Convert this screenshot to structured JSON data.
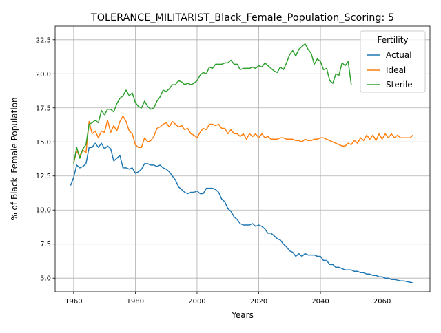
{
  "chart_data": {
    "type": "line",
    "title": "TOLERANCE_MILITARIST_Black_Female_Population_Scoring: 5",
    "xlabel": "Years",
    "ylabel": "% of Black_Female Population",
    "xlim": [
      1954,
      2075.5
    ],
    "ylim": [
      4.0,
      23.5
    ],
    "xticks": [
      1960,
      1980,
      2000,
      2020,
      2040,
      2060
    ],
    "yticks": [
      5.0,
      7.5,
      10.0,
      12.5,
      15.0,
      17.5,
      20.0,
      22.5
    ],
    "xtick_labels": [
      "1960",
      "1980",
      "2000",
      "2020",
      "2040",
      "2060"
    ],
    "ytick_labels": [
      "5.0",
      "7.5",
      "10.0",
      "12.5",
      "15.0",
      "17.5",
      "20.0",
      "22.5"
    ],
    "grid": true,
    "legend": {
      "title": "Fertility",
      "placement": "top-right"
    },
    "series": [
      {
        "name": "Actual",
        "color": "#1f77b4",
        "x": [
          1959,
          1960,
          1961,
          1962,
          1963,
          1964,
          1965,
          1966,
          1967,
          1968,
          1969,
          1970,
          1971,
          1972,
          1973,
          1974,
          1975,
          1976,
          1977,
          1978,
          1979,
          1980,
          1981,
          1982,
          1983,
          1984,
          1985,
          1986,
          1987,
          1988,
          1989,
          1990,
          1991,
          1992,
          1993,
          1994,
          1995,
          1996,
          1997,
          1998,
          1999,
          2000,
          2001,
          2002,
          2003,
          2004,
          2005,
          2006,
          2007,
          2008,
          2009,
          2010,
          2011,
          2012,
          2013,
          2014,
          2015,
          2016,
          2017,
          2018,
          2019,
          2020,
          2021,
          2022,
          2023,
          2024,
          2025,
          2026,
          2027,
          2028,
          2029,
          2030,
          2031,
          2032,
          2033,
          2034,
          2035,
          2036,
          2037,
          2038,
          2039,
          2040,
          2041,
          2042,
          2043,
          2044,
          2045,
          2046,
          2047,
          2048,
          2049,
          2050,
          2051,
          2052,
          2053,
          2054,
          2055,
          2056,
          2057,
          2058,
          2059,
          2060,
          2061,
          2062,
          2063,
          2064,
          2065,
          2066,
          2067,
          2068,
          2069,
          2070
        ],
        "values": [
          11.8,
          12.4,
          13.3,
          13.1,
          13.2,
          13.4,
          14.6,
          14.6,
          14.9,
          14.6,
          14.9,
          14.5,
          14.7,
          14.5,
          13.6,
          13.8,
          14.0,
          13.1,
          13.1,
          13.0,
          13.1,
          12.7,
          12.8,
          13.0,
          13.4,
          13.4,
          13.3,
          13.3,
          13.2,
          13.3,
          13.1,
          13.0,
          12.8,
          12.5,
          12.2,
          11.7,
          11.5,
          11.3,
          11.2,
          11.3,
          11.3,
          11.4,
          11.2,
          11.2,
          11.6,
          11.6,
          11.6,
          11.5,
          11.3,
          10.8,
          10.6,
          10.1,
          9.9,
          9.5,
          9.3,
          9.0,
          8.9,
          8.9,
          8.9,
          9.0,
          8.8,
          8.9,
          8.8,
          8.6,
          8.3,
          8.3,
          8.1,
          7.9,
          7.8,
          7.5,
          7.3,
          7.0,
          6.9,
          6.6,
          6.8,
          6.6,
          6.8,
          6.7,
          6.7,
          6.7,
          6.6,
          6.6,
          6.3,
          6.3,
          6.0,
          6.0,
          5.8,
          5.8,
          5.7,
          5.6,
          5.6,
          5.6,
          5.5,
          5.5,
          5.4,
          5.4,
          5.3,
          5.3,
          5.2,
          5.2,
          5.1,
          5.1,
          5.0,
          5.0,
          4.9,
          4.9,
          4.85,
          4.8,
          4.8,
          4.75,
          4.7,
          4.65
        ],
        "points": ""
      },
      {
        "name": "Ideal",
        "color": "#ff7f0e",
        "x": [
          1960,
          1961,
          1962,
          1963,
          1964,
          1965,
          1966,
          1967,
          1968,
          1969,
          1970,
          1971,
          1972,
          1973,
          1974,
          1975,
          1976,
          1977,
          1978,
          1979,
          1980,
          1981,
          1982,
          1983,
          1984,
          1985,
          1986,
          1987,
          1988,
          1989,
          1990,
          1991,
          1992,
          1993,
          1994,
          1995,
          1996,
          1997,
          1998,
          1999,
          2000,
          2001,
          2002,
          2003,
          2004,
          2005,
          2006,
          2007,
          2008,
          2009,
          2010,
          2011,
          2012,
          2013,
          2014,
          2015,
          2016,
          2017,
          2018,
          2019,
          2020,
          2021,
          2022,
          2023,
          2024,
          2025,
          2026,
          2027,
          2028,
          2029,
          2030,
          2031,
          2032,
          2033,
          2034,
          2035,
          2036,
          2037,
          2038,
          2039,
          2040,
          2041,
          2042,
          2043,
          2044,
          2045,
          2046,
          2047,
          2048,
          2049,
          2050,
          2051,
          2052,
          2053,
          2054,
          2055,
          2056,
          2057,
          2058,
          2059,
          2060,
          2061,
          2062,
          2063,
          2064,
          2065,
          2066,
          2067,
          2068,
          2069,
          2070
        ],
        "values": [
          13.5,
          14.3,
          14.0,
          14.4,
          14.2,
          16.5,
          15.6,
          15.8,
          15.3,
          15.8,
          15.7,
          16.6,
          15.7,
          16.2,
          15.8,
          16.5,
          16.9,
          16.5,
          15.8,
          15.6,
          14.8,
          14.6,
          14.6,
          15.3,
          15.0,
          15.1,
          15.4,
          16.0,
          16.1,
          16.3,
          16.4,
          16.1,
          16.5,
          16.3,
          16.1,
          16.2,
          15.9,
          16.0,
          15.6,
          15.5,
          15.3,
          15.7,
          16.0,
          15.9,
          16.3,
          16.3,
          16.2,
          16.3,
          16.0,
          16.0,
          15.6,
          15.9,
          15.6,
          15.6,
          15.4,
          15.6,
          15.2,
          15.6,
          15.4,
          15.6,
          15.3,
          15.6,
          15.3,
          15.4,
          15.2,
          15.2,
          15.2,
          15.3,
          15.3,
          15.2,
          15.2,
          15.2,
          15.1,
          15.1,
          15.0,
          15.2,
          15.1,
          15.1,
          15.2,
          15.2,
          15.3,
          15.3,
          15.2,
          15.1,
          15.0,
          14.9,
          14.8,
          14.7,
          14.7,
          14.9,
          14.8,
          15.1,
          14.9,
          15.3,
          15.1,
          15.5,
          15.2,
          15.5,
          15.1,
          15.6,
          15.2,
          15.6,
          15.3,
          15.6,
          15.3,
          15.5,
          15.3,
          15.3,
          15.3,
          15.3,
          15.5
        ],
        "points": ""
      },
      {
        "name": "Sterile",
        "color": "#2ca02c",
        "x": [
          1960,
          1961,
          1962,
          1963,
          1964,
          1965,
          1966,
          1967,
          1968,
          1969,
          1970,
          1971,
          1972,
          1973,
          1974,
          1975,
          1976,
          1977,
          1978,
          1979,
          1980,
          1981,
          1982,
          1983,
          1984,
          1985,
          1986,
          1987,
          1988,
          1989,
          1990,
          1991,
          1992,
          1993,
          1994,
          1995,
          1996,
          1997,
          1998,
          1999,
          2000,
          2001,
          2002,
          2003,
          2004,
          2005,
          2006,
          2007,
          2008,
          2009,
          2010,
          2011,
          2012,
          2013,
          2014,
          2015,
          2016,
          2017,
          2018,
          2019,
          2020,
          2021,
          2022,
          2023,
          2024,
          2025,
          2026,
          2027,
          2028,
          2029,
          2030,
          2031,
          2032,
          2033,
          2034,
          2035,
          2036,
          2037,
          2038,
          2039,
          2040,
          2041,
          2042,
          2043,
          2044,
          2045,
          2046,
          2047,
          2048,
          2049,
          2050
        ],
        "values": [
          13.4,
          14.6,
          13.8,
          14.5,
          14.8,
          16.3,
          16.4,
          16.6,
          16.4,
          17.3,
          17.0,
          17.4,
          17.4,
          17.2,
          17.8,
          18.2,
          18.4,
          18.8,
          18.4,
          18.6,
          17.9,
          17.6,
          17.5,
          18.0,
          17.6,
          17.4,
          17.5,
          18.0,
          18.3,
          18.8,
          18.7,
          18.9,
          19.2,
          19.2,
          19.5,
          19.4,
          19.2,
          19.3,
          19.2,
          19.3,
          19.5,
          19.9,
          20.1,
          20.0,
          20.5,
          20.4,
          20.7,
          20.7,
          20.7,
          20.8,
          20.8,
          21.0,
          20.7,
          20.7,
          20.3,
          20.4,
          20.4,
          20.4,
          20.5,
          20.4,
          20.6,
          20.5,
          20.8,
          20.6,
          20.4,
          20.2,
          20.1,
          20.5,
          20.3,
          20.8,
          21.4,
          21.7,
          21.3,
          21.8,
          22.0,
          22.2,
          21.8,
          21.5,
          20.7,
          21.1,
          20.9,
          20.3,
          20.4,
          19.5,
          19.3,
          20.0,
          19.9,
          20.8,
          20.6,
          20.9,
          19.2
        ],
        "points": ""
      }
    ]
  }
}
